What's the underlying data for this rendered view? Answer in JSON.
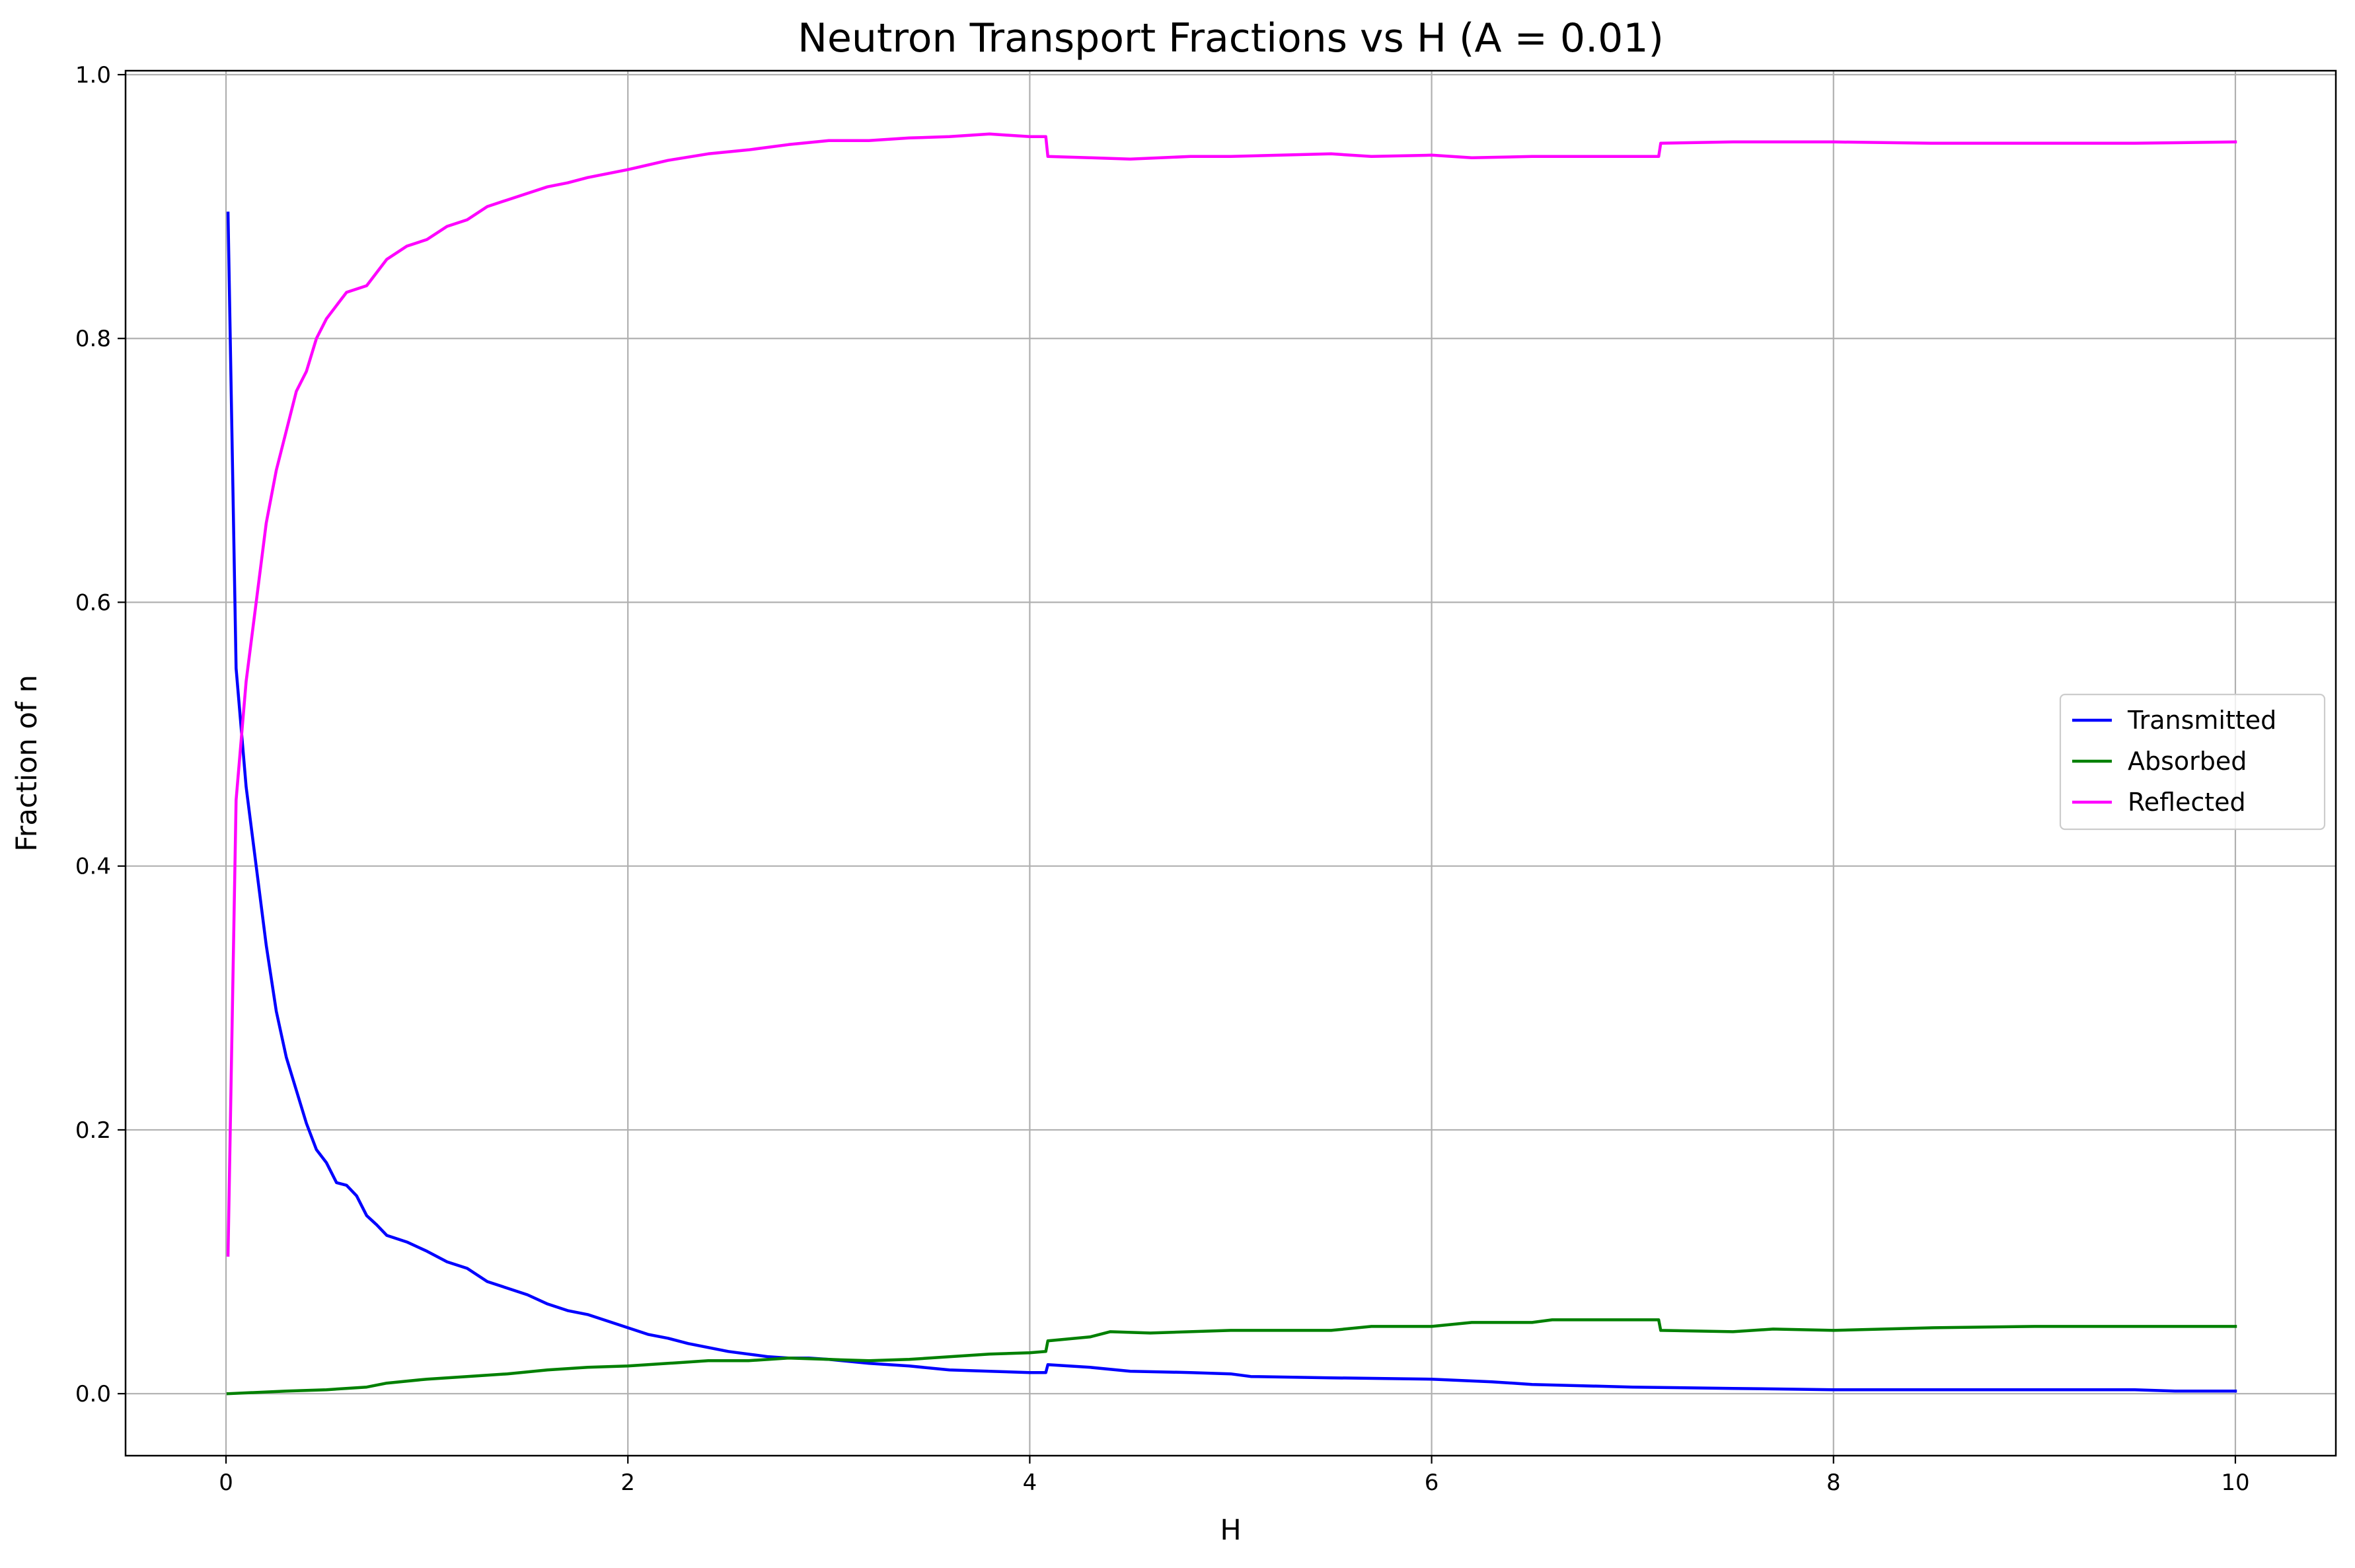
{
  "chart_data": {
    "type": "line",
    "title": "Neutron Transport Fractions vs H (A = 0.01)",
    "xlabel": "H",
    "ylabel": "Fraction of n",
    "xlim": [
      -0.5,
      10.5
    ],
    "ylim": [
      -0.047,
      1.003
    ],
    "xticks": [
      0,
      2,
      4,
      6,
      8,
      10
    ],
    "xtick_labels": [
      "0",
      "2",
      "4",
      "6",
      "8",
      "10"
    ],
    "yticks": [
      0.0,
      0.2,
      0.4,
      0.6,
      0.8,
      1.0
    ],
    "ytick_labels": [
      "0.0",
      "0.2",
      "0.4",
      "0.6",
      "0.8",
      "1.0"
    ],
    "grid": true,
    "legend_position": "center-right",
    "series": [
      {
        "name": "Transmitted",
        "color": "#0000ff",
        "x": [
          0.01,
          0.05,
          0.1,
          0.15,
          0.2,
          0.25,
          0.3,
          0.35,
          0.4,
          0.45,
          0.5,
          0.55,
          0.6,
          0.65,
          0.7,
          0.75,
          0.8,
          0.9,
          1.0,
          1.1,
          1.2,
          1.3,
          1.4,
          1.5,
          1.6,
          1.7,
          1.8,
          1.9,
          2.0,
          2.1,
          2.2,
          2.3,
          2.4,
          2.5,
          2.6,
          2.7,
          2.8,
          2.9,
          3.0,
          3.2,
          3.4,
          3.6,
          3.8,
          4.0,
          4.08,
          4.09,
          4.3,
          4.5,
          4.8,
          5.0,
          5.1,
          5.5,
          6.0,
          6.3,
          6.5,
          7.0,
          7.5,
          8.0,
          8.5,
          9.0,
          9.5,
          9.7,
          10.0
        ],
        "y": [
          0.895,
          0.55,
          0.46,
          0.4,
          0.34,
          0.29,
          0.255,
          0.23,
          0.205,
          0.185,
          0.175,
          0.16,
          0.158,
          0.15,
          0.135,
          0.128,
          0.12,
          0.115,
          0.108,
          0.1,
          0.095,
          0.085,
          0.08,
          0.075,
          0.068,
          0.063,
          0.06,
          0.055,
          0.05,
          0.045,
          0.042,
          0.038,
          0.035,
          0.032,
          0.03,
          0.028,
          0.027,
          0.027,
          0.026,
          0.023,
          0.021,
          0.018,
          0.017,
          0.016,
          0.016,
          0.022,
          0.02,
          0.017,
          0.016,
          0.015,
          0.013,
          0.012,
          0.011,
          0.009,
          0.007,
          0.005,
          0.004,
          0.003,
          0.003,
          0.003,
          0.003,
          0.002,
          0.002
        ]
      },
      {
        "name": "Absorbed",
        "color": "#008000",
        "x": [
          0.01,
          0.3,
          0.5,
          0.7,
          0.8,
          1.0,
          1.2,
          1.4,
          1.6,
          1.8,
          2.0,
          2.2,
          2.4,
          2.6,
          2.8,
          3.0,
          3.2,
          3.4,
          3.6,
          3.8,
          4.0,
          4.08,
          4.09,
          4.3,
          4.4,
          4.6,
          5.0,
          5.5,
          5.7,
          6.0,
          6.2,
          6.5,
          6.6,
          7.0,
          7.13,
          7.14,
          7.5,
          7.7,
          8.0,
          8.5,
          9.0,
          10.0
        ],
        "y": [
          0.0,
          0.002,
          0.003,
          0.005,
          0.008,
          0.011,
          0.013,
          0.015,
          0.018,
          0.02,
          0.021,
          0.023,
          0.025,
          0.025,
          0.027,
          0.026,
          0.025,
          0.026,
          0.028,
          0.03,
          0.031,
          0.032,
          0.04,
          0.043,
          0.047,
          0.046,
          0.048,
          0.048,
          0.051,
          0.051,
          0.054,
          0.054,
          0.056,
          0.056,
          0.056,
          0.048,
          0.047,
          0.049,
          0.048,
          0.05,
          0.051,
          0.051
        ]
      },
      {
        "name": "Reflected",
        "color": "#ff00ff",
        "x": [
          0.01,
          0.05,
          0.1,
          0.15,
          0.2,
          0.25,
          0.3,
          0.35,
          0.4,
          0.45,
          0.5,
          0.55,
          0.6,
          0.7,
          0.8,
          0.9,
          1.0,
          1.1,
          1.2,
          1.3,
          1.4,
          1.5,
          1.6,
          1.7,
          1.8,
          1.9,
          2.0,
          2.2,
          2.4,
          2.6,
          2.8,
          3.0,
          3.2,
          3.4,
          3.6,
          3.8,
          4.0,
          4.08,
          4.09,
          4.3,
          4.5,
          4.8,
          5.0,
          5.5,
          5.7,
          6.0,
          6.2,
          6.5,
          7.0,
          7.13,
          7.14,
          7.5,
          7.7,
          8.0,
          8.5,
          9.0,
          9.5,
          10.0
        ],
        "y": [
          0.105,
          0.45,
          0.54,
          0.6,
          0.66,
          0.7,
          0.73,
          0.76,
          0.775,
          0.8,
          0.815,
          0.825,
          0.835,
          0.84,
          0.86,
          0.87,
          0.875,
          0.885,
          0.89,
          0.9,
          0.905,
          0.91,
          0.915,
          0.918,
          0.922,
          0.925,
          0.928,
          0.935,
          0.94,
          0.943,
          0.947,
          0.95,
          0.95,
          0.952,
          0.953,
          0.955,
          0.953,
          0.953,
          0.938,
          0.937,
          0.936,
          0.938,
          0.938,
          0.94,
          0.938,
          0.939,
          0.937,
          0.938,
          0.938,
          0.938,
          0.948,
          0.949,
          0.949,
          0.949,
          0.948,
          0.948,
          0.948,
          0.949
        ]
      }
    ]
  }
}
